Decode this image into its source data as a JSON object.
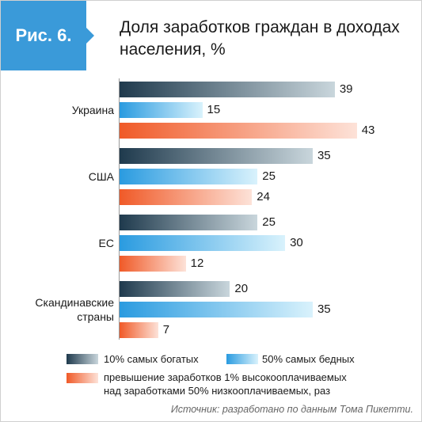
{
  "badge": "Рис. 6.",
  "title_line1": "Доля заработков граждан в доходах",
  "title_line2": "населения, %",
  "colors": {
    "rich": [
      "#1f3a4d",
      "#c9d6dc"
    ],
    "poor": [
      "#2a9be0",
      "#d9f2fc"
    ],
    "ratio": [
      "#f05a28",
      "#fde2d8"
    ]
  },
  "chart_data": {
    "type": "bar",
    "orientation": "horizontal",
    "categories": [
      "Украина",
      "США",
      "ЕС",
      "Скандинавские страны"
    ],
    "category_lines": [
      [
        "Украина"
      ],
      [
        "США"
      ],
      [
        "ЕС"
      ],
      [
        "Скандинавские",
        "страны"
      ]
    ],
    "series": [
      {
        "name": "10% самых богатых",
        "values": [
          39,
          35,
          25,
          20
        ]
      },
      {
        "name": "50% самых бедных",
        "values": [
          15,
          25,
          30,
          35
        ]
      },
      {
        "name": "превышение заработков 1% высокооплачиваемых над заработками 50% низкооплачиваемых, раз",
        "values": [
          43,
          24,
          12,
          7
        ]
      }
    ]
  },
  "legend": {
    "rich": "10% самых богатых",
    "poor": "50% самых бедных",
    "ratio_line1": "превышение заработков 1% высокооплачиваемых",
    "ratio_line2": "над заработками 50% низкооплачиваемых, раз"
  },
  "source": "Источник: разработано по данным Тома Пикетти."
}
